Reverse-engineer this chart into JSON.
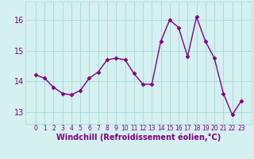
{
  "x": [
    0,
    1,
    2,
    3,
    4,
    5,
    6,
    7,
    8,
    9,
    10,
    11,
    12,
    13,
    14,
    15,
    16,
    17,
    18,
    19,
    20,
    21,
    22,
    23
  ],
  "y": [
    14.2,
    14.1,
    13.8,
    13.6,
    13.55,
    13.7,
    14.1,
    14.3,
    14.7,
    14.75,
    14.7,
    14.25,
    13.9,
    13.9,
    15.3,
    16.0,
    15.75,
    14.8,
    16.1,
    15.3,
    14.75,
    13.6,
    12.9,
    13.35
  ],
  "line_color": "#800080",
  "marker": "D",
  "marker_size": 2.5,
  "linewidth": 1.0,
  "bg_color": "#d4f0f0",
  "grid_color": "#a8d8d8",
  "xlabel": "Windchill (Refroidissement éolien,°C)",
  "xlabel_fontsize": 7,
  "xlabel_color": "#800080",
  "ylim": [
    12.6,
    16.6
  ],
  "yticks": [
    13,
    14,
    15,
    16
  ],
  "ytick_fontsize": 7,
  "xticks": [
    0,
    1,
    2,
    3,
    4,
    5,
    6,
    7,
    8,
    9,
    10,
    11,
    12,
    13,
    14,
    15,
    16,
    17,
    18,
    19,
    20,
    21,
    22,
    23
  ],
  "xtick_fontsize": 5.5,
  "tick_color": "#800080"
}
